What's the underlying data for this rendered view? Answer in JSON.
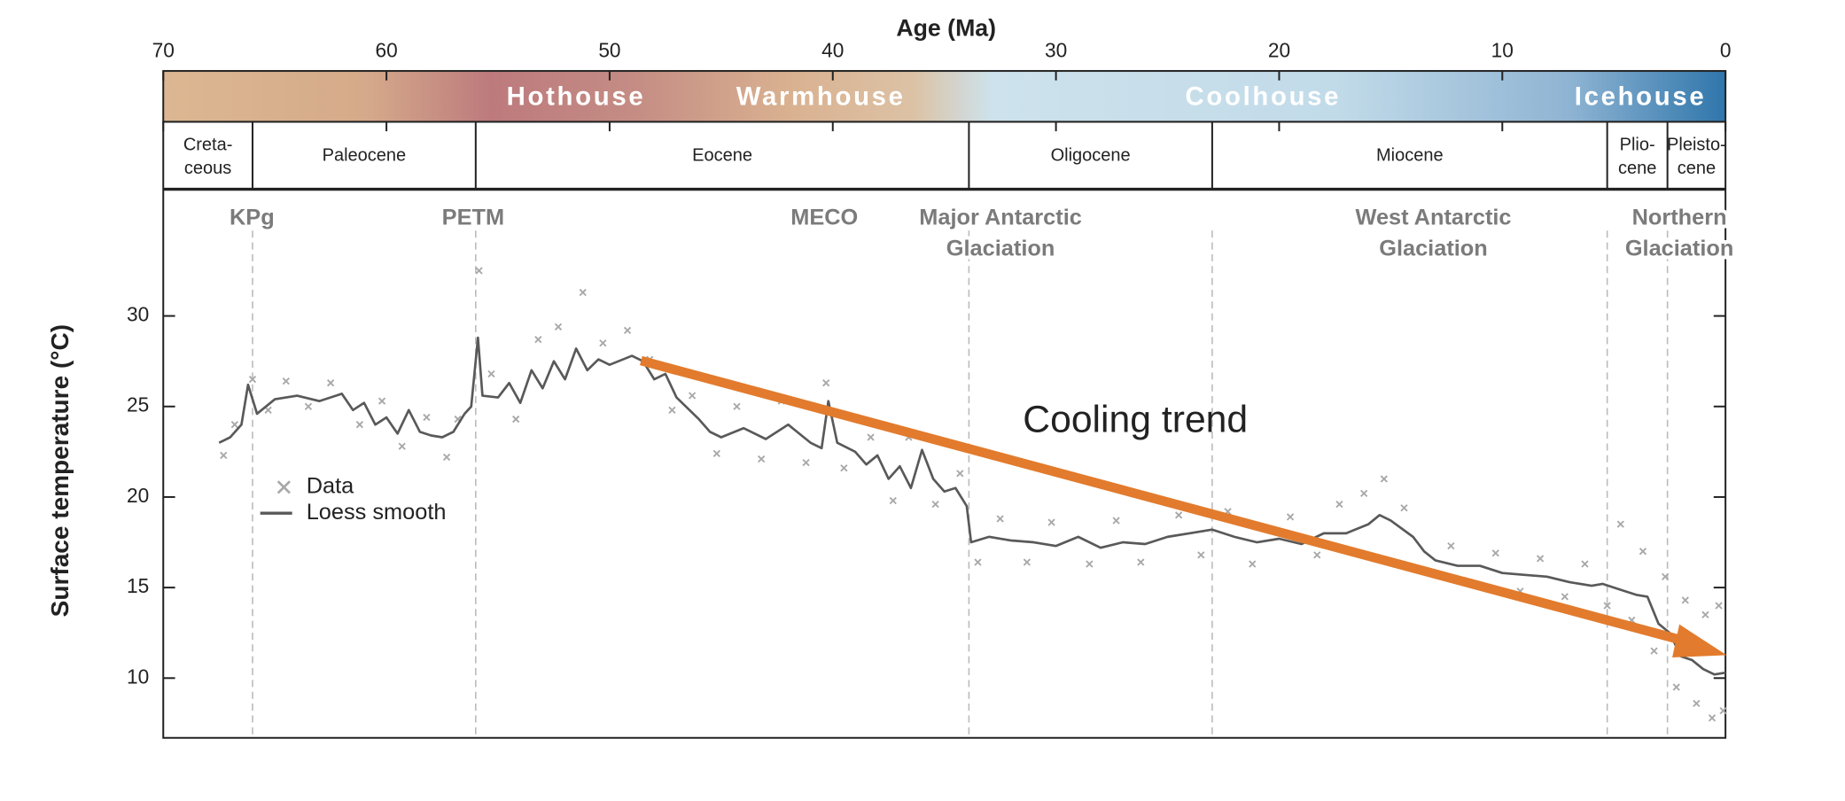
{
  "chart_data": {
    "type": "line",
    "x_label": "Age (Ma)",
    "y_label": "Surface temperature (°C)",
    "xlim": [
      70,
      0
    ],
    "xticks": [
      70,
      60,
      50,
      40,
      30,
      20,
      10,
      0
    ],
    "ylim": [
      6.7,
      37
    ],
    "yticks": [
      10,
      15,
      20,
      25,
      30
    ],
    "regimes": [
      "Hothouse",
      "Warmhouse",
      "Coolhouse",
      "Icehouse"
    ],
    "epochs": [
      [
        "Creta-",
        "ceous"
      ],
      [
        "Paleocene"
      ],
      [
        "Eocene"
      ],
      [
        "Oligocene"
      ],
      [
        "Miocene"
      ],
      [
        "Plio-",
        "cene"
      ],
      [
        "Pleisto-",
        "cene"
      ]
    ],
    "boundaries": [
      66,
      56,
      33.9,
      23,
      5.3,
      2.6
    ],
    "events": [
      [
        "KPg"
      ],
      [
        "PETM"
      ],
      [
        "MECO"
      ],
      [
        "Major Antarctic",
        "Glaciation"
      ],
      [
        "West Antarctic",
        "Glaciation"
      ],
      [
        "Northern",
        "Glaciation"
      ]
    ],
    "annotation": "Cooling trend",
    "series": [
      {
        "name": "Data",
        "color": "#a8a8a8",
        "marker": "x",
        "x": [
          67.3,
          66.8,
          66,
          65.3,
          64.5,
          63.5,
          62.5,
          61.2,
          60.2,
          59.3,
          58.2,
          57.3,
          56.8,
          55.85,
          55.3,
          54.2,
          53.2,
          52.3,
          51.2,
          50.3,
          49.2,
          48.2,
          47.2,
          46.3,
          45.2,
          44.3,
          43.2,
          42.3,
          41.2,
          40.3,
          39.5,
          38.3,
          37.3,
          36.6,
          35.4,
          34.3,
          33.5,
          32.5,
          31.3,
          30.2,
          28.5,
          27.3,
          26.2,
          24.5,
          23.5,
          22.3,
          21.2,
          19.5,
          18.3,
          17.3,
          16.2,
          15.3,
          14.4,
          13.2,
          12.3,
          11.2,
          10.3,
          9.2,
          8.3,
          7.2,
          6.3,
          5.3,
          4.7,
          4.2,
          3.7,
          3.2,
          2.7,
          2.2,
          1.8,
          1.3,
          0.9,
          0.6,
          0.3,
          0.1
        ],
        "values": [
          22.3,
          24,
          26.5,
          24.8,
          26.4,
          25,
          26.3,
          24,
          25.3,
          22.8,
          24.4,
          22.2,
          24.3,
          32.5,
          26.8,
          24.3,
          28.7,
          29.4,
          31.3,
          28.5,
          29.2,
          27.6,
          24.8,
          25.6,
          22.4,
          25,
          22.1,
          25.3,
          21.9,
          26.3,
          21.6,
          23.3,
          19.8,
          23.3,
          19.6,
          21.3,
          16.4,
          18.8,
          16.4,
          18.6,
          16.3,
          18.7,
          16.4,
          19,
          16.8,
          19.2,
          16.3,
          18.9,
          16.8,
          19.6,
          20.2,
          21,
          19.4,
          15.8,
          17.3,
          15.2,
          16.9,
          14.8,
          16.6,
          14.5,
          16.3,
          14,
          18.5,
          13.2,
          17,
          11.5,
          15.6,
          9.5,
          14.3,
          8.6,
          13.5,
          7.8,
          14,
          8.2
        ]
      },
      {
        "name": "Loess smooth",
        "color": "#595959",
        "marker": "line",
        "x": [
          67.5,
          67,
          66.5,
          66.2,
          65.8,
          65,
          64,
          63,
          62,
          61.5,
          61,
          60.5,
          60,
          59.5,
          59,
          58.5,
          58,
          57.5,
          57,
          56.5,
          56.2,
          55.9,
          55.7,
          55,
          54.5,
          54,
          53.5,
          53,
          52.5,
          52,
          51.5,
          51,
          50.5,
          50,
          49,
          48.5,
          48,
          47.5,
          47,
          46,
          45.5,
          45,
          44,
          43,
          42,
          41.5,
          41,
          40.5,
          40.2,
          39.8,
          39,
          38.5,
          38,
          37.5,
          37,
          36.5,
          36,
          35.5,
          35,
          34.5,
          34,
          33.8,
          33,
          32,
          31,
          30,
          29,
          28,
          27,
          26,
          25,
          24,
          23,
          22,
          21,
          20,
          19,
          18,
          17,
          16,
          15.5,
          15,
          14,
          13.5,
          13,
          12,
          11,
          10,
          9,
          8,
          7,
          6,
          5.5,
          5,
          4.5,
          4,
          3.5,
          3,
          2.5,
          2,
          1.5,
          1,
          0.5,
          0
        ],
        "values": [
          23,
          23.3,
          24,
          26.2,
          24.6,
          25.4,
          25.6,
          25.3,
          25.7,
          24.8,
          25.2,
          24,
          24.4,
          23.5,
          24.8,
          23.6,
          23.4,
          23.3,
          23.6,
          24.6,
          25,
          28.8,
          25.6,
          25.5,
          26.3,
          25.2,
          27,
          26,
          27.5,
          26.5,
          28.2,
          27,
          27.6,
          27.3,
          27.8,
          27.5,
          26.5,
          26.8,
          25.5,
          24.3,
          23.6,
          23.3,
          23.8,
          23.2,
          24,
          23.5,
          23,
          22.7,
          25.3,
          23,
          22.5,
          21.8,
          22.3,
          21,
          21.7,
          20.5,
          22.6,
          21,
          20.3,
          20.5,
          19.5,
          17.5,
          17.8,
          17.6,
          17.5,
          17.3,
          17.8,
          17.2,
          17.5,
          17.4,
          17.8,
          18,
          18.2,
          17.8,
          17.5,
          17.7,
          17.4,
          18,
          18,
          18.5,
          19,
          18.7,
          17.8,
          17,
          16.5,
          16.2,
          16.2,
          15.8,
          15.7,
          15.6,
          15.3,
          15.1,
          15.2,
          15,
          14.8,
          14.6,
          14.5,
          13,
          12.5,
          11.2,
          11,
          10.5,
          10.2,
          10.3
        ]
      }
    ],
    "annotation_color": "#e27b2d"
  }
}
